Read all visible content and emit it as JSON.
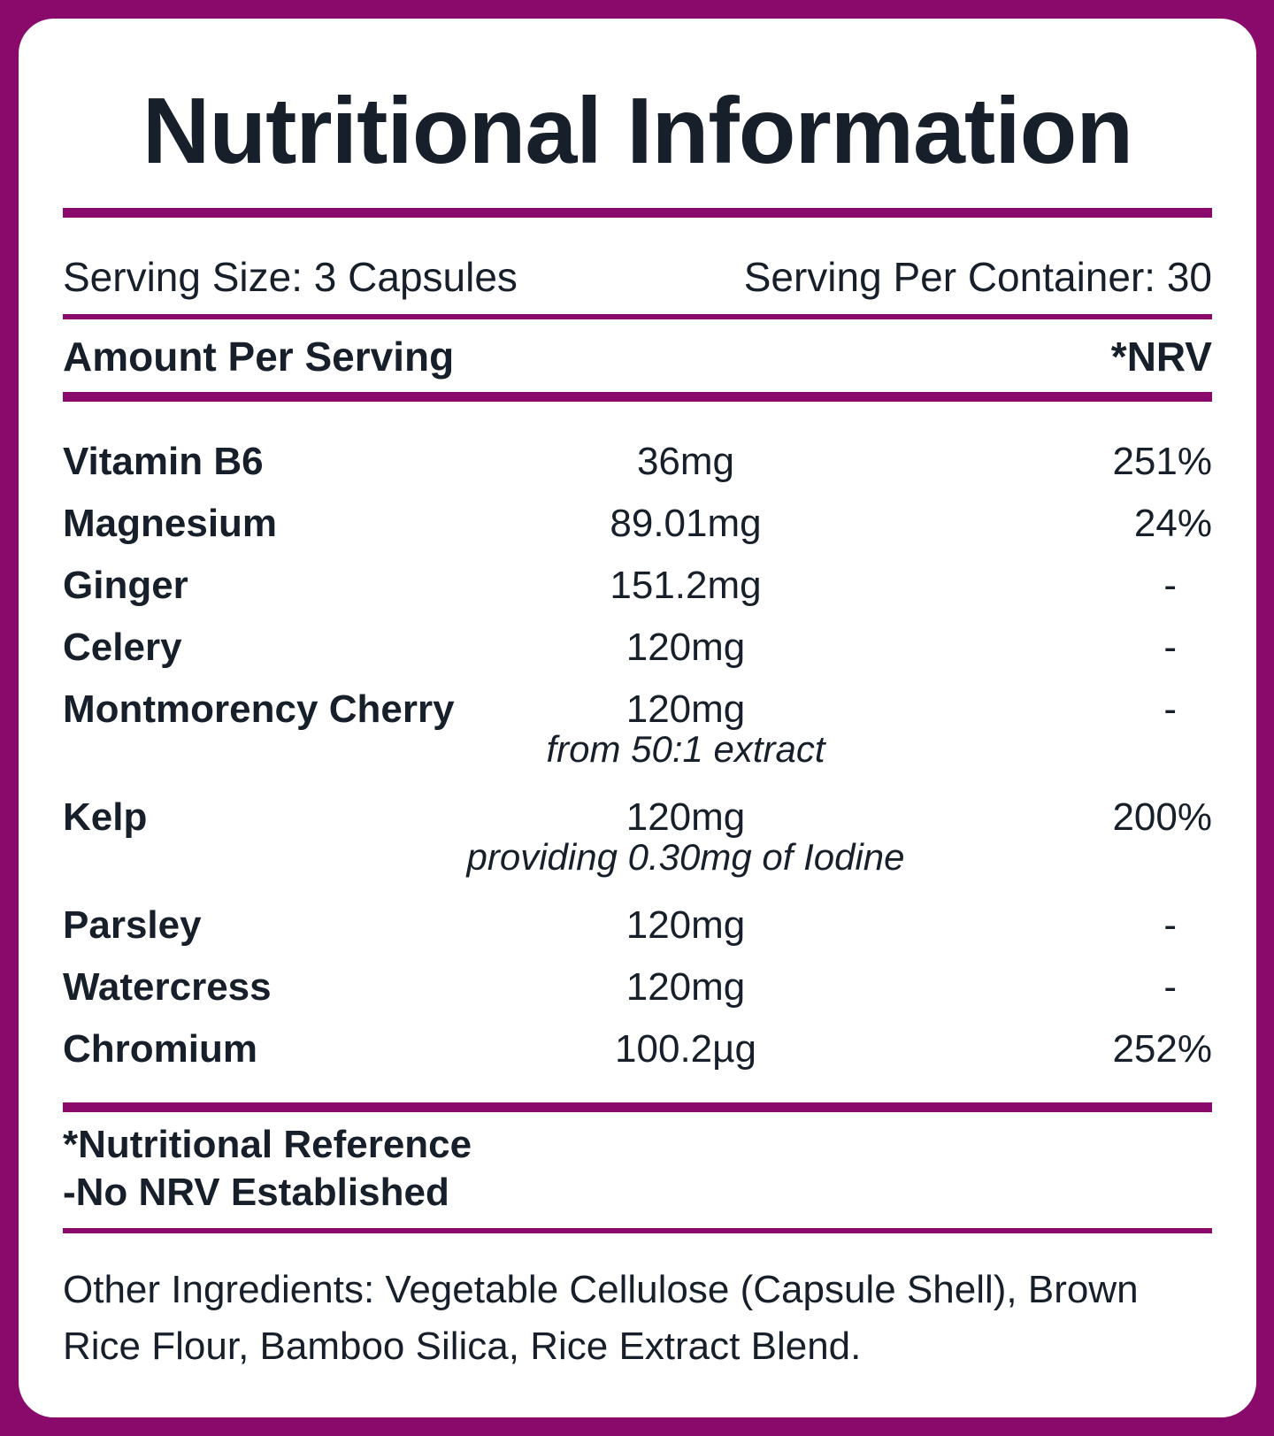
{
  "title": "Nutritional Information",
  "serving": {
    "size": "Serving Size: 3 Capsules",
    "per_container": "Serving Per Container: 30"
  },
  "header": {
    "amount": "Amount Per Serving",
    "nrv": "*NRV"
  },
  "nutrients": [
    {
      "name": "Vitamin B6",
      "amount": "36mg",
      "nrv": "251%"
    },
    {
      "name": "Magnesium",
      "amount": "89.01mg",
      "nrv": "24%"
    },
    {
      "name": "Ginger",
      "amount": "151.2mg",
      "nrv": "-"
    },
    {
      "name": "Celery",
      "amount": "120mg",
      "nrv": "-"
    },
    {
      "name": "Montmorency Cherry",
      "amount": "120mg",
      "nrv": "-",
      "note": "from 50:1 extract"
    },
    {
      "name": "Kelp",
      "amount": "120mg",
      "nrv": "200%",
      "note": "providing 0.30mg of Iodine"
    },
    {
      "name": "Parsley",
      "amount": "120mg",
      "nrv": "-"
    },
    {
      "name": "Watercress",
      "amount": "120mg",
      "nrv": "-"
    },
    {
      "name": "Chromium",
      "amount": "100.2µg",
      "nrv": "252%"
    }
  ],
  "footnotes": {
    "line1": "*Nutritional Reference",
    "line2": "-No NRV Established"
  },
  "other_ingredients": "Other Ingredients: Vegetable Cellulose (Capsule Shell), Brown Rice Flour, Bamboo Silica, Rice Extract Blend.",
  "colors": {
    "border": "#8a0a6c",
    "text": "#17202a",
    "card": "#ffffff"
  }
}
